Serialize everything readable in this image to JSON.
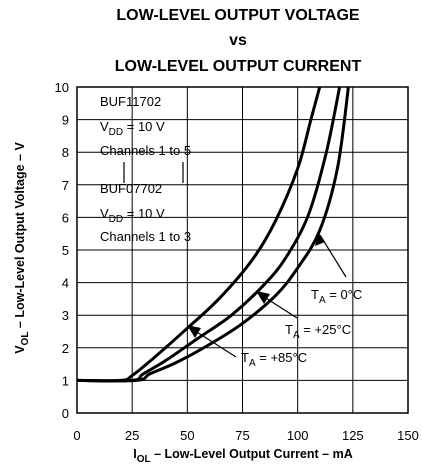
{
  "chart_data": {
    "type": "line",
    "title": [
      "LOW-LEVEL OUTPUT VOLTAGE",
      "vs",
      "LOW-LEVEL OUTPUT CURRENT"
    ],
    "xlabel": {
      "prefix": "I",
      "sub": "OL",
      "suffix": " – Low-Level Output Current – mA"
    },
    "ylabel": {
      "prefix": "V",
      "sub": "OL",
      "suffix": " – Low-Level Output Voltage – V"
    },
    "xlim": [
      0,
      150
    ],
    "ylim": [
      0,
      10
    ],
    "xticks": [
      0,
      25,
      50,
      75,
      100,
      125,
      150
    ],
    "yticks": [
      0,
      1,
      2,
      3,
      4,
      5,
      6,
      7,
      8,
      9,
      10
    ],
    "grid": true,
    "series": [
      {
        "name": "TA = 0°C",
        "label": {
          "prefix": "T",
          "sub": "A",
          "suffix": " = 0°C"
        },
        "x": [
          0,
          20,
          25,
          35,
          50,
          65,
          80,
          90,
          100,
          106,
          110
        ],
        "y": [
          1,
          1,
          1.15,
          1.7,
          2.6,
          3.55,
          4.75,
          5.9,
          7.5,
          9.0,
          10
        ]
      },
      {
        "name": "TA = +25°C",
        "label": {
          "prefix": "T",
          "sub": "A",
          "suffix": " = +25°C"
        },
        "x": [
          0,
          25,
          30,
          40,
          55,
          70,
          85,
          95,
          105,
          113,
          119
        ],
        "y": [
          1,
          1,
          1.2,
          1.6,
          2.3,
          3.0,
          3.95,
          4.8,
          6.1,
          8.0,
          10
        ]
      },
      {
        "name": "TA = +85°C",
        "label": {
          "prefix": "T",
          "sub": "A",
          "suffix": " = +85°C"
        },
        "x": [
          0,
          27,
          33,
          45,
          60,
          75,
          90,
          100,
          110,
          118,
          123
        ],
        "y": [
          1,
          1,
          1.2,
          1.55,
          2.1,
          2.75,
          3.6,
          4.45,
          5.6,
          7.5,
          10
        ]
      }
    ],
    "annotations": {
      "block1": [
        "BUF11702",
        {
          "prefix": "V",
          "sub": "DD",
          "suffix": " = 10 V"
        },
        "Channels 1 to 5"
      ],
      "block2": [
        "BUF07702",
        {
          "prefix": "V",
          "sub": "DD",
          "suffix": " = 10 V"
        },
        "Channels 1 to 3"
      ]
    }
  }
}
